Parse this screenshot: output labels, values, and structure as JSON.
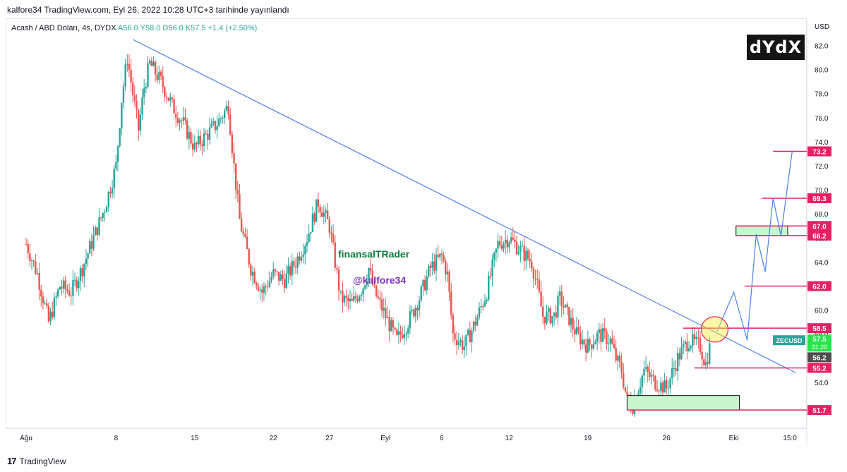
{
  "header": {
    "caption": "kalfore34 TradingView.com, Eyl 26, 2022 10:28 UTC+3 tarihinde yayınlandı"
  },
  "legend": {
    "symbol": "Acash / ABD Doları, 4s, DYDX",
    "ohlc": "A56.0  Y58.0  D56.0  K57.5  +1.4 (+2.50%)"
  },
  "watermark": {
    "name": "finansalTRader",
    "handle": "@kalfore34"
  },
  "logo": {
    "text": "dYdX"
  },
  "footer": {
    "brand": "TradingView",
    "mark": "17"
  },
  "chart_data": {
    "type": "candlestick",
    "currency_label": "USD",
    "ylim": [
      51.0,
      84.0
    ],
    "y_ticks": [
      {
        "value": 54,
        "label": "54.0"
      },
      {
        "value": 56,
        "label": "56.0"
      },
      {
        "value": 58,
        "label": "58.0"
      },
      {
        "value": 60,
        "label": "60.0"
      },
      {
        "value": 62,
        "label": "62.0"
      },
      {
        "value": 64,
        "label": "64.0"
      },
      {
        "value": 66,
        "label": "66.0"
      },
      {
        "value": 68,
        "label": "68.0"
      },
      {
        "value": 70,
        "label": "70.0"
      },
      {
        "value": 72,
        "label": "72.0"
      },
      {
        "value": 74,
        "label": "74.0"
      },
      {
        "value": 76,
        "label": "76.0"
      },
      {
        "value": 78,
        "label": "78.0"
      },
      {
        "value": 80,
        "label": "80.0"
      },
      {
        "value": 82,
        "label": "82.0"
      }
    ],
    "x_ticks": [
      "Ağu",
      "8",
      "15",
      "22",
      "27",
      "Eyl",
      "6",
      "12",
      "19",
      "26",
      "Eki",
      "15:0"
    ],
    "x_tick_days": [
      0,
      8,
      15,
      22,
      27,
      32,
      37,
      43,
      50,
      57,
      63,
      68
    ],
    "x_range_days": [
      -1.7,
      69.5
    ],
    "series_path": [
      [
        0,
        65.5
      ],
      [
        1,
        63.0
      ],
      [
        2,
        59.0
      ],
      [
        3,
        62.0
      ],
      [
        4,
        61.5
      ],
      [
        5,
        63.5
      ],
      [
        6,
        66.0
      ],
      [
        7,
        68.5
      ],
      [
        8,
        72.0
      ],
      [
        8.5,
        77.5
      ],
      [
        9,
        81.0
      ],
      [
        9.5,
        78.0
      ],
      [
        10,
        75.0
      ],
      [
        10.5,
        78.5
      ],
      [
        11,
        80.5
      ],
      [
        12,
        79.0
      ],
      [
        13,
        77.0
      ],
      [
        14,
        75.5
      ],
      [
        15,
        73.5
      ],
      [
        16,
        74.5
      ],
      [
        17,
        75.5
      ],
      [
        18,
        77.0
      ],
      [
        18.5,
        72.0
      ],
      [
        19,
        67.5
      ],
      [
        20,
        63.5
      ],
      [
        21,
        61.5
      ],
      [
        22,
        63.0
      ],
      [
        23,
        62.5
      ],
      [
        24,
        64.0
      ],
      [
        25,
        66.0
      ],
      [
        26,
        69.0
      ],
      [
        27,
        67.0
      ],
      [
        27.5,
        64.0
      ],
      [
        28,
        61.0
      ],
      [
        29,
        60.5
      ],
      [
        30,
        62.0
      ],
      [
        30.5,
        63.5
      ],
      [
        31,
        61.5
      ],
      [
        32,
        59.5
      ],
      [
        33,
        57.5
      ],
      [
        34,
        59.0
      ],
      [
        35,
        61.0
      ],
      [
        36,
        63.5
      ],
      [
        37,
        64.5
      ],
      [
        37.5,
        63.0
      ],
      [
        38,
        58.0
      ],
      [
        39,
        57.0
      ],
      [
        40,
        59.0
      ],
      [
        41,
        61.5
      ],
      [
        42,
        65.5
      ],
      [
        43,
        66.0
      ],
      [
        44,
        65.0
      ],
      [
        45,
        64.0
      ],
      [
        45.5,
        62.0
      ],
      [
        46,
        59.5
      ],
      [
        47,
        59.5
      ],
      [
        47.5,
        61.0
      ],
      [
        48,
        60.0
      ],
      [
        49,
        58.0
      ],
      [
        50,
        57.0
      ],
      [
        51,
        58.0
      ],
      [
        52,
        57.5
      ],
      [
        52.5,
        56.0
      ],
      [
        53,
        55.0
      ],
      [
        53.5,
        52.5
      ],
      [
        54,
        52.0
      ],
      [
        55,
        55.0
      ],
      [
        56,
        54.0
      ],
      [
        57,
        53.5
      ],
      [
        58,
        56.0
      ],
      [
        59,
        57.5
      ],
      [
        60,
        57.0
      ],
      [
        60.5,
        55.5
      ],
      [
        61,
        57.5
      ]
    ],
    "trendline": [
      [
        9.5,
        82.5
      ],
      [
        68.5,
        54.8
      ]
    ],
    "price_levels": [
      {
        "label": "73.2",
        "value": 73.2
      },
      {
        "label": "69.3",
        "value": 69.3
      },
      {
        "label": "67.0",
        "value": 67.0
      },
      {
        "label": "66.2",
        "value": 66.2
      },
      {
        "label": "62.0",
        "value": 62.0
      },
      {
        "label": "58.5",
        "value": 58.5
      },
      {
        "label": "55.2",
        "value": 55.2
      },
      {
        "label": "51.7",
        "value": 51.7
      }
    ],
    "current_price": {
      "symbol": "ZECUSD",
      "value": 57.5,
      "label": "57.5",
      "countdown": "31:20"
    },
    "open_price_label": {
      "label": "56.2",
      "value": 56.2
    },
    "projection_path": [
      [
        61.5,
        58.2
      ],
      [
        63.0,
        61.5
      ],
      [
        64.2,
        57.5
      ],
      [
        65.0,
        66.3
      ],
      [
        65.8,
        63.2
      ],
      [
        66.5,
        69.3
      ],
      [
        67.2,
        66.2
      ],
      [
        68.2,
        73.2
      ]
    ],
    "zones": [
      {
        "from_day": 53.5,
        "to_day": 63.5,
        "low": 51.7,
        "high": 52.9
      },
      {
        "from_day": 63.2,
        "to_day": 67.8,
        "low": 66.2,
        "high": 67.0
      }
    ],
    "highlight_circle": {
      "day": 61.3,
      "value": 58.4
    }
  }
}
